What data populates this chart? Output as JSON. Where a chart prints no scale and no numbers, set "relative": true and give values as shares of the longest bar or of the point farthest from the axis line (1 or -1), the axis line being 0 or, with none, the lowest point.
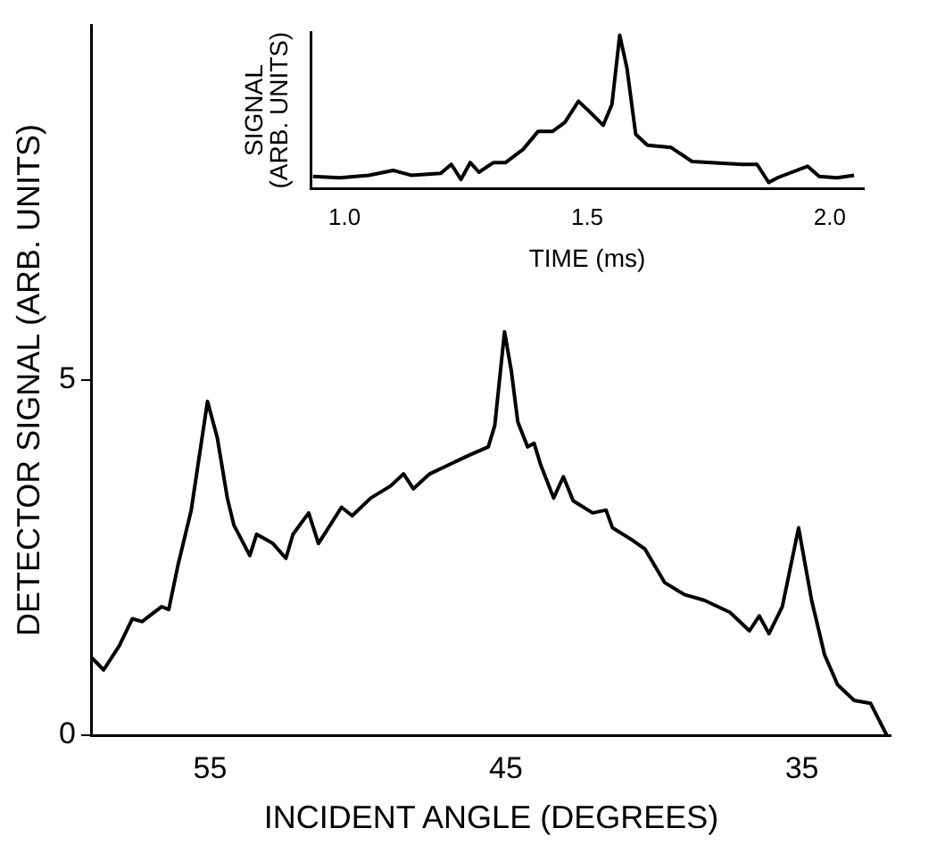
{
  "chart_data": [
    {
      "type": "line",
      "xlabel": "INCIDENT ANGLE (DEGREES)",
      "ylabel": "DETECTOR SIGNAL (ARB. UNITS)",
      "color": "#000000",
      "xlim": [
        59,
        32
      ],
      "xticks": [
        55,
        45,
        35
      ],
      "ylim": [
        0,
        10
      ],
      "yticks": [
        0,
        5
      ],
      "x": [
        59.0,
        58.6,
        58.07,
        57.63,
        57.3,
        56.64,
        56.4,
        56.08,
        55.64,
        55.09,
        54.76,
        54.42,
        54.2,
        53.66,
        53.43,
        52.88,
        52.44,
        52.2,
        51.67,
        51.34,
        50.56,
        50.2,
        49.57,
        48.9,
        48.46,
        48.13,
        47.58,
        46.92,
        46.26,
        45.6,
        45.38,
        45.05,
        44.82,
        44.6,
        44.27,
        44.05,
        43.83,
        43.39,
        43.06,
        42.73,
        42.07,
        41.62,
        41.4,
        40.74,
        40.3,
        39.64,
        38.97,
        38.3,
        37.43,
        36.77,
        36.44,
        36.11,
        35.66,
        35.11,
        34.67,
        34.23,
        33.79,
        33.23,
        32.68,
        32.13
      ],
      "values": [
        1.09,
        0.92,
        1.26,
        1.64,
        1.6,
        1.81,
        1.77,
        2.41,
        3.17,
        4.7,
        4.19,
        3.34,
        2.96,
        2.53,
        2.83,
        2.7,
        2.49,
        2.83,
        3.13,
        2.7,
        3.21,
        3.09,
        3.34,
        3.51,
        3.68,
        3.47,
        3.68,
        3.81,
        3.94,
        4.06,
        4.36,
        5.68,
        5.13,
        4.41,
        4.06,
        4.11,
        3.81,
        3.34,
        3.64,
        3.3,
        3.13,
        3.17,
        2.92,
        2.75,
        2.62,
        2.15,
        1.98,
        1.9,
        1.73,
        1.47,
        1.68,
        1.43,
        1.81,
        2.92,
        1.9,
        1.13,
        0.71,
        0.49,
        0.45,
        0.0
      ]
    },
    {
      "type": "line",
      "xlabel": "TIME (ms)",
      "ylabel": "SIGNAL (ARB. UNITS)",
      "color": "#000000",
      "relative": true,
      "xlim": [
        0.93,
        2.07
      ],
      "xticks": [
        {
          "value": 1,
          "label": "1.0"
        },
        {
          "value": 1.5,
          "label": "1.5"
        },
        {
          "value": 2,
          "label": "2.0"
        }
      ],
      "x": [
        0.935,
        0.99,
        1.05,
        1.1,
        1.137,
        1.198,
        1.22,
        1.24,
        1.259,
        1.277,
        1.307,
        1.332,
        1.368,
        1.399,
        1.429,
        1.454,
        1.482,
        1.502,
        1.533,
        1.551,
        1.567,
        1.582,
        1.6,
        1.624,
        1.673,
        1.716,
        1.771,
        1.82,
        1.85,
        1.874,
        1.893,
        1.954,
        1.978,
        2.015,
        2.05
      ],
      "values": [
        0.078,
        0.07,
        0.086,
        0.118,
        0.086,
        0.098,
        0.157,
        0.059,
        0.169,
        0.106,
        0.169,
        0.169,
        0.255,
        0.373,
        0.373,
        0.431,
        0.569,
        0.51,
        0.412,
        0.549,
        1.0,
        0.784,
        0.353,
        0.282,
        0.267,
        0.176,
        0.165,
        0.157,
        0.157,
        0.039,
        0.071,
        0.145,
        0.078,
        0.07,
        0.086
      ]
    }
  ]
}
